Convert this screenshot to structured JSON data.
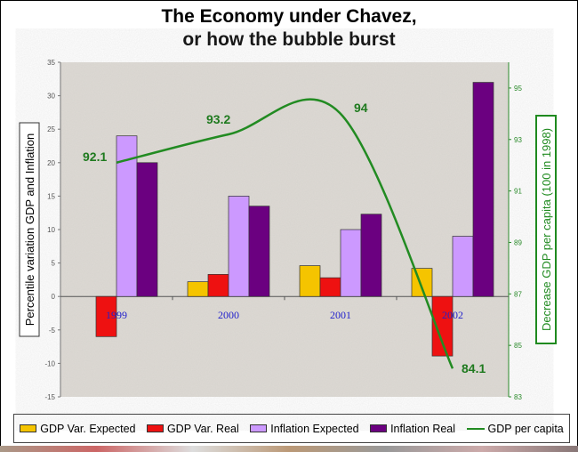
{
  "title_lines": [
    "The Economy under Chavez,",
    "or how the bubble burst"
  ],
  "chart_data": {
    "type": "bar+line",
    "title": "The Economy under Chavez, or how the bubble burst",
    "categories": [
      "1999",
      "2000",
      "2001",
      "2002"
    ],
    "ylabel": "Percentile variation  GDP and Inflation",
    "ylim": [
      -15,
      35
    ],
    "yticks": [
      -15,
      -10,
      -5,
      0,
      5,
      10,
      15,
      20,
      25,
      30,
      35
    ],
    "y2label": "Decrease GDP per capita (100 in 1998)",
    "y2lim": [
      83,
      96
    ],
    "y2ticks": [
      83,
      85,
      87,
      89,
      91,
      93,
      95
    ],
    "series": [
      {
        "name": "GDP Var. Expected",
        "type": "bar",
        "color": "#f5c400",
        "values": [
          0,
          2.2,
          4.6,
          4.2
        ]
      },
      {
        "name": "GDP Var. Real",
        "type": "bar",
        "color": "#ee1111",
        "values": [
          -6,
          3.3,
          2.8,
          -8.9
        ]
      },
      {
        "name": "Inflation Expected",
        "type": "bar",
        "color": "#cc99ff",
        "values": [
          24,
          15,
          10,
          9
        ]
      },
      {
        "name": "Inflation Real",
        "type": "bar",
        "color": "#6b0080",
        "values": [
          20,
          13.5,
          12.3,
          32
        ]
      },
      {
        "name": "GDP per capita",
        "type": "line",
        "axis": "right",
        "color": "#228b22",
        "values": [
          92.1,
          93.2,
          94,
          84.1
        ],
        "labels": [
          "92.1",
          "93.2",
          "94",
          "84.1"
        ]
      }
    ],
    "legend": "bottom",
    "grid": false
  }
}
